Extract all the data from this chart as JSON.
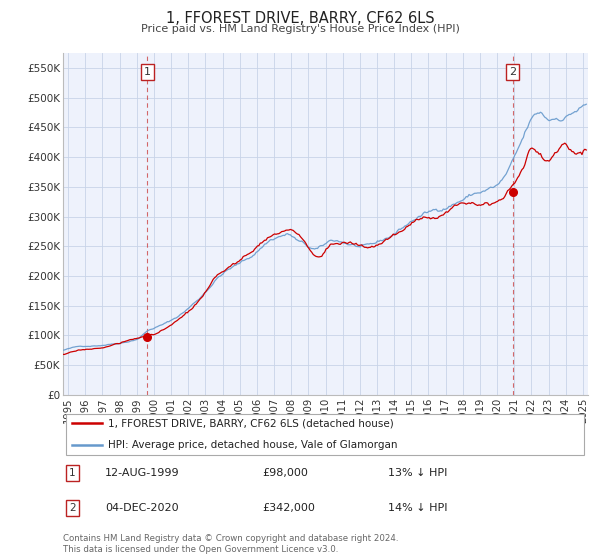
{
  "title": "1, FFOREST DRIVE, BARRY, CF62 6LS",
  "subtitle": "Price paid vs. HM Land Registry's House Price Index (HPI)",
  "hpi_label": "HPI: Average price, detached house, Vale of Glamorgan",
  "property_label": "1, FFOREST DRIVE, BARRY, CF62 6LS (detached house)",
  "annotation1": {
    "label": "1",
    "date": "12-AUG-1999",
    "price": "£98,000",
    "hpi_diff": "13% ↓ HPI",
    "x": 1999.617
  },
  "annotation2": {
    "label": "2",
    "date": "04-DEC-2020",
    "price": "£342,000",
    "hpi_diff": "14% ↓ HPI",
    "x": 2020.917
  },
  "footer": "Contains HM Land Registry data © Crown copyright and database right 2024.\nThis data is licensed under the Open Government Licence v3.0.",
  "ylim": [
    0,
    575000
  ],
  "xlim_start": 1994.7,
  "xlim_end": 2025.3,
  "yticks": [
    0,
    50000,
    100000,
    150000,
    200000,
    250000,
    300000,
    350000,
    400000,
    450000,
    500000,
    550000
  ],
  "ytick_labels": [
    "£0",
    "£50K",
    "£100K",
    "£150K",
    "£200K",
    "£250K",
    "£300K",
    "£350K",
    "£400K",
    "£450K",
    "£500K",
    "£550K"
  ],
  "xticks": [
    1995,
    1996,
    1997,
    1998,
    1999,
    2000,
    2001,
    2002,
    2003,
    2004,
    2005,
    2006,
    2007,
    2008,
    2009,
    2010,
    2011,
    2012,
    2013,
    2014,
    2015,
    2016,
    2017,
    2018,
    2019,
    2020,
    2021,
    2022,
    2023,
    2024,
    2025
  ],
  "red_color": "#cc0000",
  "blue_color": "#6699cc",
  "grid_color": "#c8d4e8",
  "bg_color": "#eef2fc",
  "sale1_x": 1999.617,
  "sale1_y": 98000,
  "sale2_x": 2020.917,
  "sale2_y": 342000
}
